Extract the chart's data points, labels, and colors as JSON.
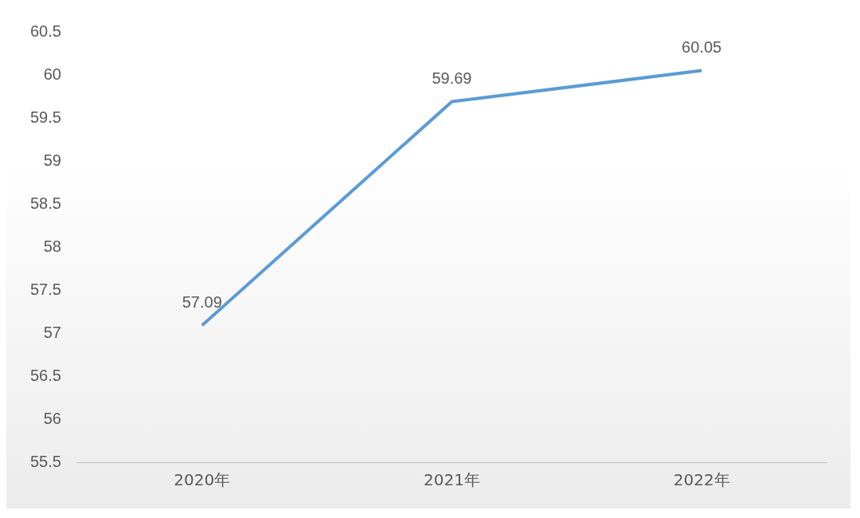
{
  "chart_data": {
    "type": "line",
    "categories": [
      "2020年",
      "2021年",
      "2022年"
    ],
    "series": [
      {
        "color": "#5b9bd5",
        "values": [
          57.09,
          59.69,
          60.05
        ]
      }
    ],
    "ylim": [
      55.5,
      60.5
    ],
    "yticks": [
      55.5,
      56,
      56.5,
      57,
      57.5,
      58,
      58.5,
      59,
      59.5,
      60,
      60.5
    ],
    "data_labels": true,
    "grid": false,
    "legend": false,
    "marker": "none",
    "line_style": "solid"
  }
}
